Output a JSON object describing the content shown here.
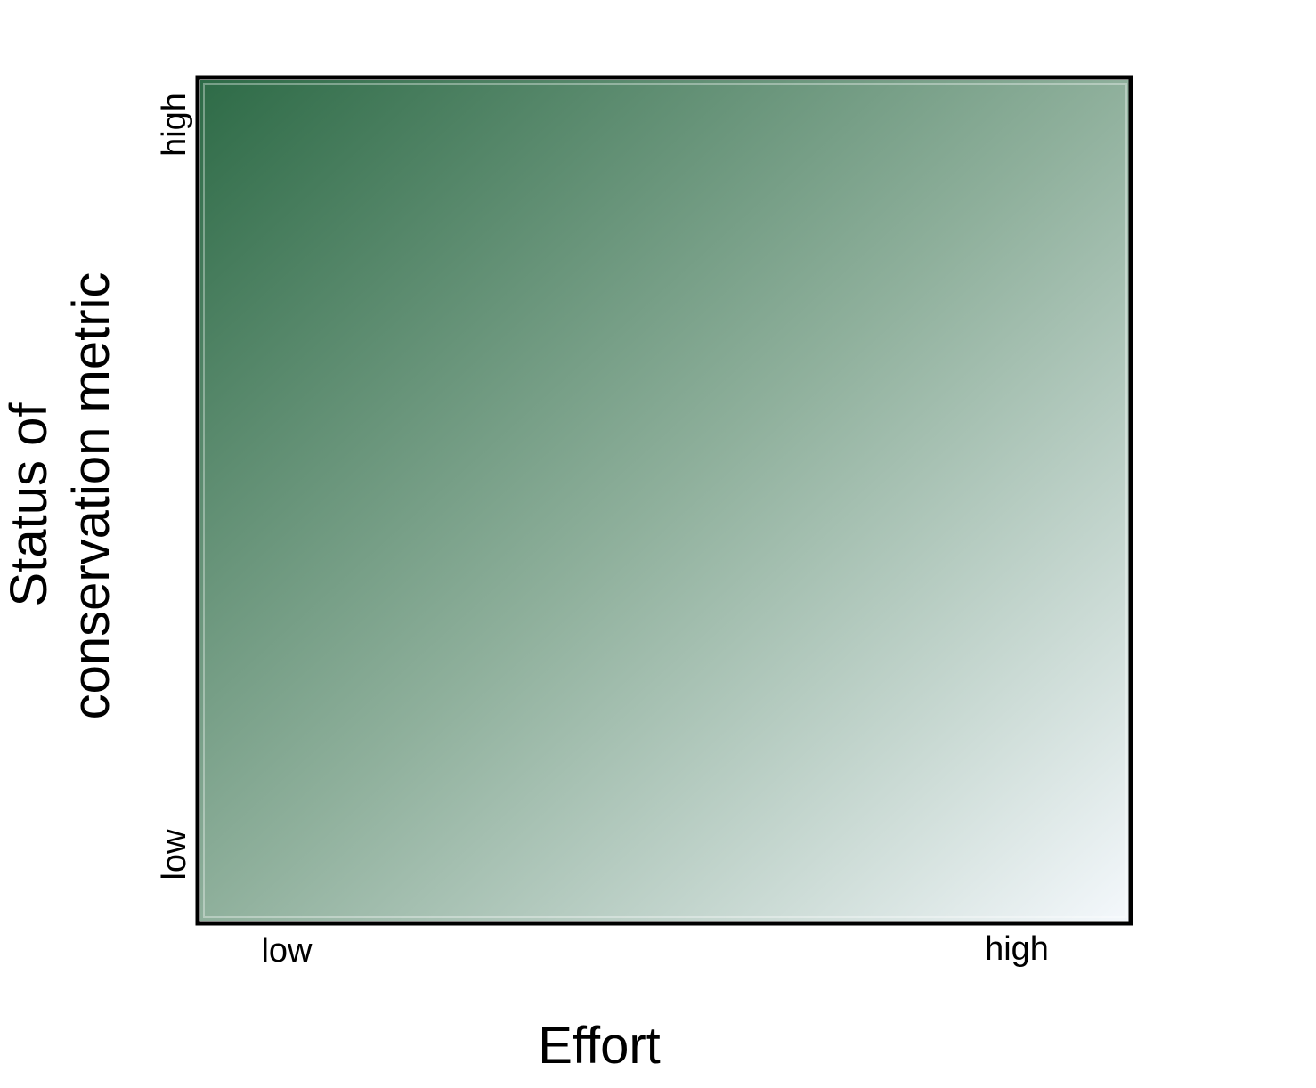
{
  "chart_data": {
    "type": "heatmap",
    "title": "",
    "xlabel": "Effort",
    "ylabel_lines": [
      "Status of",
      "conservation metric"
    ],
    "x_ticks": [
      "low",
      "high"
    ],
    "y_ticks": [
      "low",
      "high"
    ],
    "gradient": {
      "direction": "from top-left (low effort, high status) to bottom-right (high effort, low status)",
      "start_color": "#2e6b47",
      "mid_color": "#8fb09c",
      "end_color": "#f4f8fc"
    },
    "grid": false,
    "legend": "none",
    "frame_color": "#000000"
  }
}
